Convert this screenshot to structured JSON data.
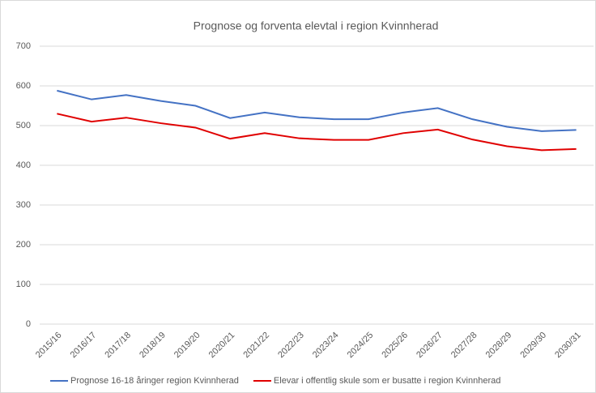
{
  "chart_data": {
    "type": "line",
    "title": "Prognose og forventa elevtal i region Kvinnherad",
    "categories": [
      "2015/16",
      "2016/17",
      "2017/18",
      "2018/19",
      "2019/20",
      "2020/21",
      "2021/22",
      "2022/23",
      "2023/24",
      "2024/25",
      "2025/26",
      "2026/27",
      "2027/28",
      "2028/29",
      "2029/30",
      "2030/31"
    ],
    "series": [
      {
        "name": "Prognose 16-18 åringer region Kvinnherad",
        "color": "#4472c4",
        "values": [
          588,
          566,
          577,
          562,
          550,
          519,
          533,
          521,
          516,
          516,
          533,
          544,
          516,
          497,
          486,
          489
        ]
      },
      {
        "name": "Elevar i offentlig skule som er busatte i region Kvinnherad",
        "color": "#e00000",
        "values": [
          530,
          510,
          520,
          506,
          495,
          467,
          481,
          468,
          464,
          464,
          481,
          490,
          465,
          448,
          438,
          441
        ]
      }
    ],
    "ylim": [
      0,
      700
    ],
    "yticks": [
      0,
      100,
      200,
      300,
      400,
      500,
      600,
      700
    ],
    "grid": true,
    "legend": "bottom"
  }
}
